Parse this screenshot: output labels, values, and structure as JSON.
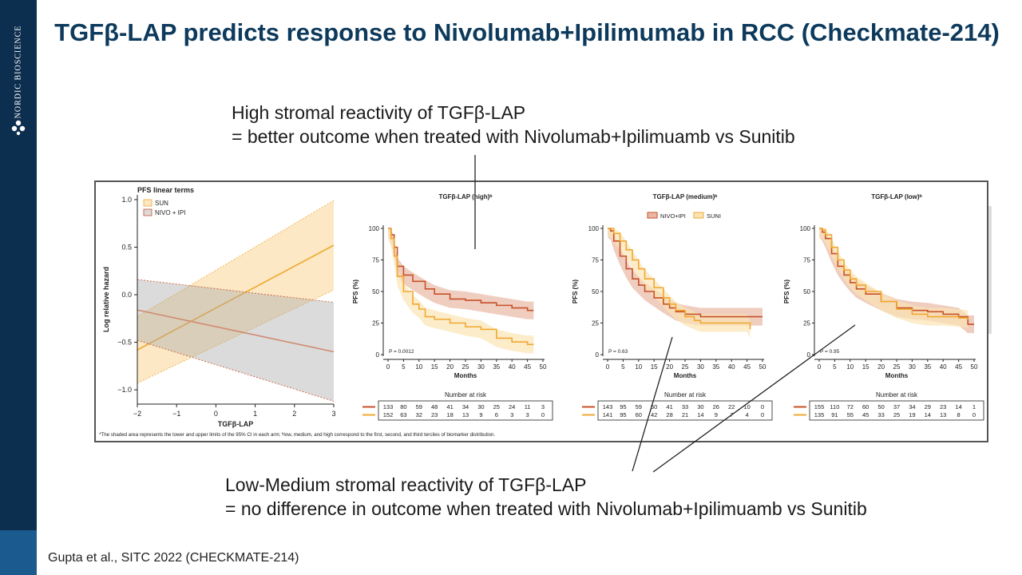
{
  "slide": {
    "title": "TGFβ-LAP predicts response to Nivolumab+Ipilimumab in RCC (Checkmate-214)",
    "brand": "NORDIC BIOSCIENCE",
    "note_high_line1": "High stromal reactivity of TGFβ-LAP",
    "note_high_line2": "= better outcome when treated with Nivolumab+Ipilimuamb vs Sunitib",
    "note_low_line1": "Low-Medium stromal reactivity of TGFβ-LAP",
    "note_low_line2": "= no difference in outcome when treated with Nivolumab+Ipilimuamb vs Sunitib",
    "citation": "Gupta et al., SITC 2022 (CHECKMATE-214)",
    "footnote": "*The shaded area represents the lower and upper limits of the 95% CI in each arm; ᵇlow, medium, and high correspond to the first, second, and third terciles of biomarker distribution.",
    "colors": {
      "nivo": "#c8512a",
      "sun": "#f0a830",
      "nivo_fill": "#e8b8a4",
      "sun_fill": "#fbe4b4",
      "navy": "#0d2f4f",
      "title": "#0d3a5c"
    }
  },
  "chart_data": [
    {
      "type": "line",
      "title": "PFS linear terms",
      "xlabel": "TGFβ-LAP",
      "ylabel": "Log relative hazard",
      "xlim": [
        -2,
        3
      ],
      "ylim": [
        -1.15,
        1.05
      ],
      "xticks": [
        -2,
        -1,
        0,
        1,
        2,
        3
      ],
      "xtick_labels": [
        "−2",
        "−1",
        "0",
        "1",
        "2",
        "3"
      ],
      "yticks": [
        1.0,
        0.5,
        0.0,
        -0.5,
        -1.0
      ],
      "ytick_labels": [
        "1.0",
        "0.5",
        "0.0",
        "−0.5",
        "−1.0"
      ],
      "legend": [
        "SUN",
        "NIVO + IPI"
      ],
      "series": [
        {
          "name": "SUN",
          "x": [
            -2,
            3
          ],
          "y": [
            -0.58,
            0.52
          ],
          "lower": [
            -0.93,
            0.05
          ],
          "upper": [
            -0.23,
            0.99
          ]
        },
        {
          "name": "NIVO + IPI",
          "x": [
            -2,
            3
          ],
          "y": [
            -0.16,
            -0.6
          ],
          "lower": [
            -0.48,
            -1.12
          ],
          "upper": [
            0.16,
            -0.08
          ]
        }
      ]
    },
    {
      "type": "line",
      "title": "TGFβ-LAP (high)ᵇ",
      "xlabel": "Months",
      "ylabel": "PFS (%)",
      "xlim": [
        0,
        50
      ],
      "ylim": [
        0,
        100
      ],
      "xticks": [
        0,
        5,
        10,
        15,
        20,
        25,
        30,
        35,
        40,
        45,
        50
      ],
      "yticks": [
        0,
        25,
        50,
        75,
        100
      ],
      "p_value": "P = 0.0012",
      "series": [
        {
          "name": "NIVO+IPI",
          "x": [
            0,
            1,
            2,
            3,
            5,
            8,
            12,
            15,
            20,
            25,
            30,
            35,
            40,
            45,
            47
          ],
          "y": [
            100,
            95,
            85,
            70,
            63,
            58,
            52,
            48,
            44,
            43,
            41,
            39,
            37,
            35,
            35
          ]
        },
        {
          "name": "SUN",
          "x": [
            0,
            1,
            2,
            3,
            5,
            8,
            10,
            12,
            15,
            20,
            25,
            30,
            35,
            40,
            45,
            47
          ],
          "y": [
            100,
            92,
            78,
            62,
            50,
            40,
            36,
            30,
            28,
            25,
            22,
            20,
            13,
            10,
            8,
            8
          ]
        }
      ],
      "risk_table": {
        "title": "Number at risk",
        "rows": [
          {
            "name": "NIVO+IPI",
            "values": [
              "133",
              "80",
              "59",
              "48",
              "41",
              "34",
              "30",
              "25",
              "24",
              "11",
              "3"
            ]
          },
          {
            "name": "SUN",
            "values": [
              "152",
              "63",
              "32",
              "23",
              "18",
              "13",
              "9",
              "6",
              "3",
              "3",
              "0"
            ]
          }
        ]
      }
    },
    {
      "type": "line",
      "title": "TGFβ-LAP (medium)ᵇ",
      "xlabel": "Months",
      "ylabel": "PFS (%)",
      "xlim": [
        0,
        50
      ],
      "ylim": [
        0,
        100
      ],
      "xticks": [
        0,
        5,
        10,
        15,
        20,
        25,
        30,
        35,
        40,
        45,
        50
      ],
      "yticks": [
        0,
        25,
        50,
        75,
        100
      ],
      "p_value": "P = 0.63",
      "legend": [
        "NIVO+IPI",
        "SUNI"
      ],
      "series": [
        {
          "name": "NIVO+IPI",
          "x": [
            0,
            1,
            2,
            4,
            6,
            8,
            10,
            12,
            15,
            18,
            20,
            22,
            25,
            30,
            35,
            40,
            45,
            50
          ],
          "y": [
            100,
            98,
            90,
            78,
            68,
            60,
            55,
            50,
            45,
            40,
            37,
            34,
            32,
            30,
            30,
            30,
            30,
            30
          ]
        },
        {
          "name": "SUNI",
          "x": [
            0,
            1,
            2,
            4,
            6,
            8,
            10,
            12,
            15,
            18,
            20,
            22,
            25,
            28,
            30,
            35,
            40,
            45,
            46
          ],
          "y": [
            100,
            100,
            96,
            90,
            83,
            75,
            68,
            60,
            53,
            45,
            40,
            35,
            30,
            27,
            25,
            25,
            25,
            25,
            20
          ]
        }
      ],
      "risk_table": {
        "title": "Number at risk",
        "rows": [
          {
            "name": "NIVO+IPI",
            "values": [
              "143",
              "95",
              "59",
              "50",
              "41",
              "33",
              "30",
              "26",
              "22",
              "10",
              "0"
            ]
          },
          {
            "name": "SUNI",
            "values": [
              "141",
              "95",
              "60",
              "42",
              "28",
              "21",
              "14",
              "9",
              "7",
              "4",
              "0"
            ]
          }
        ]
      }
    },
    {
      "type": "line",
      "title": "TGFβ-LAP (low)ᵇ",
      "xlabel": "Months",
      "ylabel": "PFS (%)",
      "xlim": [
        0,
        50
      ],
      "ylim": [
        0,
        100
      ],
      "xticks": [
        0,
        5,
        10,
        15,
        20,
        25,
        30,
        35,
        40,
        45,
        50
      ],
      "yticks": [
        0,
        25,
        50,
        75,
        100
      ],
      "p_value": "P = 0.95",
      "series": [
        {
          "name": "NIVO+IPI",
          "x": [
            0,
            1,
            2,
            4,
            6,
            8,
            10,
            12,
            15,
            20,
            25,
            30,
            35,
            40,
            45,
            48,
            50
          ],
          "y": [
            100,
            97,
            92,
            80,
            70,
            63,
            57,
            52,
            48,
            42,
            37,
            35,
            34,
            32,
            30,
            24,
            24
          ]
        },
        {
          "name": "SUN",
          "x": [
            0,
            1,
            2,
            4,
            6,
            8,
            10,
            12,
            15,
            20,
            25,
            30,
            35,
            40,
            45,
            48
          ],
          "y": [
            100,
            99,
            95,
            85,
            75,
            67,
            60,
            55,
            50,
            42,
            36,
            32,
            30,
            30,
            29,
            28
          ]
        }
      ],
      "risk_table": {
        "title": "Number at risk",
        "rows": [
          {
            "name": "NIVO+IPI",
            "values": [
              "155",
              "110",
              "72",
              "60",
              "50",
              "37",
              "34",
              "29",
              "23",
              "14",
              "1"
            ]
          },
          {
            "name": "SUN",
            "values": [
              "135",
              "91",
              "55",
              "45",
              "33",
              "25",
              "19",
              "14",
              "13",
              "8",
              "0"
            ]
          }
        ]
      }
    }
  ]
}
